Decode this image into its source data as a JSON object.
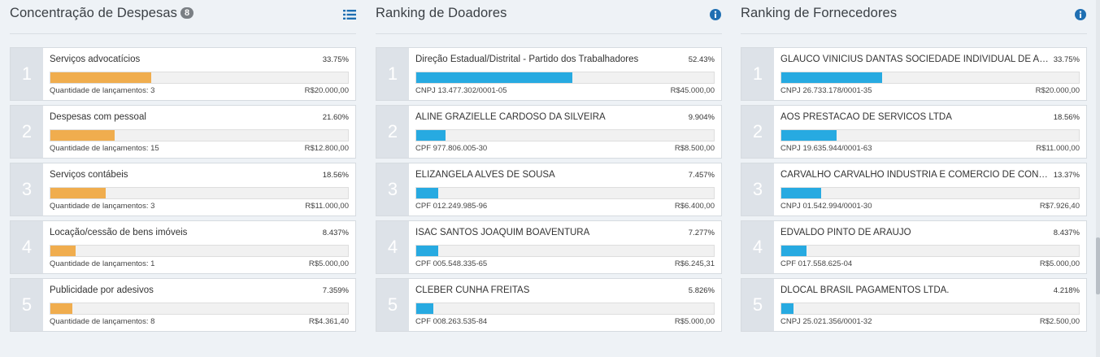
{
  "colors": {
    "expense_bar": "#f0ad4e",
    "donor_bar": "#27aae1",
    "rank_bg": "#dde2e8",
    "icon_blue": "#1f6fb2"
  },
  "expenses": {
    "title": "Concentração de Despesas",
    "badge": "8",
    "icon": "list-icon",
    "rows": [
      {
        "rank": "1",
        "name": "Serviços advocatícios",
        "pct": "33.75%",
        "fraction": 0.3375,
        "sub": "Quantidade de lançamentos: 3",
        "value": "R$20.000,00"
      },
      {
        "rank": "2",
        "name": "Despesas com pessoal",
        "pct": "21.60%",
        "fraction": 0.216,
        "sub": "Quantidade de lançamentos: 15",
        "value": "R$12.800,00"
      },
      {
        "rank": "3",
        "name": "Serviços contábeis",
        "pct": "18.56%",
        "fraction": 0.1856,
        "sub": "Quantidade de lançamentos: 3",
        "value": "R$11.000,00"
      },
      {
        "rank": "4",
        "name": "Locação/cessão de bens imóveis",
        "pct": "8.437%",
        "fraction": 0.08437,
        "sub": "Quantidade de lançamentos: 1",
        "value": "R$5.000,00"
      },
      {
        "rank": "5",
        "name": "Publicidade por adesivos",
        "pct": "7.359%",
        "fraction": 0.07359,
        "sub": "Quantidade de lançamentos: 8",
        "value": "R$4.361,40"
      }
    ]
  },
  "donors": {
    "title": "Ranking de Doadores",
    "icon": "info-icon",
    "rows": [
      {
        "rank": "1",
        "name": "Direção Estadual/Distrital - Partido dos Trabalhadores",
        "pct": "52.43%",
        "fraction": 0.5243,
        "sub": "CNPJ 13.477.302/0001-05",
        "value": "R$45.000,00"
      },
      {
        "rank": "2",
        "name": "ALINE GRAZIELLE CARDOSO DA SILVEIRA",
        "pct": "9.904%",
        "fraction": 0.09904,
        "sub": "CPF 977.806.005-30",
        "value": "R$8.500,00"
      },
      {
        "rank": "3",
        "name": "ELIZANGELA ALVES DE SOUSA",
        "pct": "7.457%",
        "fraction": 0.07457,
        "sub": "CPF 012.249.985-96",
        "value": "R$6.400,00"
      },
      {
        "rank": "4",
        "name": "ISAC SANTOS JOAQUIM BOAVENTURA",
        "pct": "7.277%",
        "fraction": 0.07277,
        "sub": "CPF 005.548.335-65",
        "value": "R$6.245,31"
      },
      {
        "rank": "5",
        "name": "CLEBER CUNHA FREITAS",
        "pct": "5.826%",
        "fraction": 0.05826,
        "sub": "CPF 008.263.535-84",
        "value": "R$5.000,00"
      }
    ]
  },
  "suppliers": {
    "title": "Ranking de Fornecedores",
    "icon": "info-icon",
    "rows": [
      {
        "rank": "1",
        "name": "GLAUCO VINICIUS DANTAS SOCIEDADE INDIVIDUAL DE ADVO...",
        "pct": "33.75%",
        "fraction": 0.3375,
        "sub": "CNPJ 26.733.178/0001-35",
        "value": "R$20.000,00"
      },
      {
        "rank": "2",
        "name": "AOS PRESTACAO DE SERVICOS LTDA",
        "pct": "18.56%",
        "fraction": 0.1856,
        "sub": "CNPJ 19.635.944/0001-63",
        "value": "R$11.000,00"
      },
      {
        "rank": "3",
        "name": "CARVALHO CARVALHO INDUSTRIA E COMERCIO DE CONFECC...",
        "pct": "13.37%",
        "fraction": 0.1337,
        "sub": "CNPJ 01.542.994/0001-30",
        "value": "R$7.926,40"
      },
      {
        "rank": "4",
        "name": "EDVALDO PINTO DE ARAUJO",
        "pct": "8.437%",
        "fraction": 0.08437,
        "sub": "CPF 017.558.625-04",
        "value": "R$5.000,00"
      },
      {
        "rank": "5",
        "name": "DLOCAL BRASIL PAGAMENTOS LTDA.",
        "pct": "4.218%",
        "fraction": 0.04218,
        "sub": "CNPJ 25.021.356/0001-32",
        "value": "R$2.500,00"
      }
    ]
  }
}
